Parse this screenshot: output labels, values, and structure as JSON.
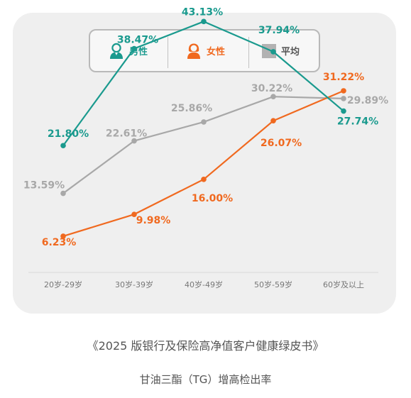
{
  "legend": [
    {
      "label": "男性",
      "color": "#1a9a8e",
      "icon": "male-user-icon"
    },
    {
      "label": "女性",
      "color": "#f0691f",
      "icon": "female-user-icon"
    },
    {
      "label": "平均",
      "color": "#b2b2b2",
      "icon": "grey-square-icon"
    }
  ],
  "caption": {
    "source": "《2025 版银行及保险高净值客户健康绿皮书》",
    "subtitle": "甘油三酯（TG）增高检出率"
  },
  "chart_data": {
    "type": "line",
    "categories": [
      "20岁-29岁",
      "30岁-39岁",
      "40岁-49岁",
      "50岁-59岁",
      "60岁及以上"
    ],
    "ylim": [
      0,
      50
    ],
    "grid": false,
    "legend_position": "top",
    "series": [
      {
        "name": "男性",
        "color": "#1a9a8e",
        "values": [
          21.8,
          38.47,
          43.13,
          37.94,
          27.74
        ],
        "labels": [
          "21.80%",
          "38.47%",
          "43.13%",
          "37.94%",
          "27.74%"
        ]
      },
      {
        "name": "女性",
        "color": "#f0691f",
        "values": [
          6.23,
          9.98,
          16.0,
          26.07,
          31.22
        ],
        "labels": [
          "6.23%",
          "9.98%",
          "16.00%",
          "26.07%",
          "31.22%"
        ]
      },
      {
        "name": "平均",
        "color": "#a8a8a8",
        "values": [
          13.59,
          22.61,
          25.86,
          30.22,
          29.89
        ],
        "labels": [
          "13.59%",
          "22.61%",
          "25.86%",
          "30.22%",
          "29.89%"
        ]
      }
    ]
  }
}
